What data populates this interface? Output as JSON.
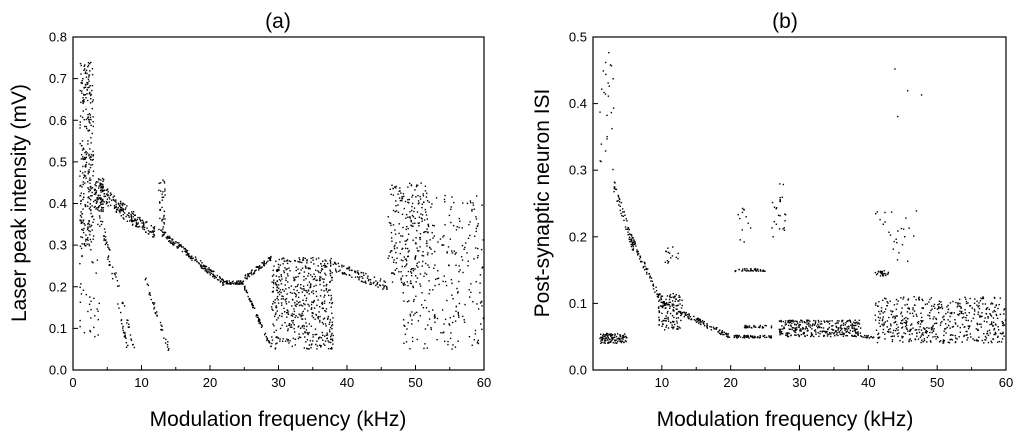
{
  "chart_data": [
    {
      "type": "scatter",
      "title": "(a)",
      "xlabel": "Modulation frequency (kHz)",
      "ylabel": "Laser peak intensity (mV)",
      "xlim": [
        0,
        60
      ],
      "ylim": [
        0.0,
        0.8
      ],
      "xticks": [
        "0",
        "10",
        "20",
        "30",
        "40",
        "50",
        "60"
      ],
      "yticks": [
        "0.0",
        "0.1",
        "0.2",
        "0.3",
        "0.4",
        "0.5",
        "0.6",
        "0.7",
        "0.8"
      ],
      "grid": false,
      "legend": "none",
      "color": "#000000",
      "series": [
        {
          "role": "peak-intensity-bifurcation",
          "segments": [
            {
              "x_range": [
                1.0,
                3.0
              ],
              "y_range": [
                0.3,
                0.74
              ],
              "shape": "dense-cloud",
              "n": 260
            },
            {
              "x_range": [
                3.0,
                4.5
              ],
              "y_range": [
                0.38,
                0.46
              ],
              "shape": "dense-cloud",
              "n": 80
            },
            {
              "x_range": [
                1.0,
                4.0
              ],
              "y_range": [
                0.08,
                0.45
              ],
              "shape": "scatter",
              "n": 60
            },
            {
              "x_from": [
                4,
                0.43
              ],
              "x_to": [
                9,
                0.36
              ],
              "shape": "curve",
              "n": 120,
              "spread": 0.02
            },
            {
              "x_from": [
                9,
                0.36
              ],
              "x_to": [
                12,
                0.33
              ],
              "shape": "curve",
              "n": 60,
              "spread": 0.015
            },
            {
              "x_range": [
                12.5,
                13.5
              ],
              "y_range": [
                0.33,
                0.46
              ],
              "shape": "spike",
              "n": 40
            },
            {
              "x_from": [
                13,
                0.33
              ],
              "x_to": [
                22,
                0.21
              ],
              "shape": "curve",
              "n": 150,
              "spread": 0.008
            },
            {
              "x_from": [
                22,
                0.21
              ],
              "x_to": [
                25,
                0.21
              ],
              "shape": "curve",
              "n": 50,
              "spread": 0.004
            },
            {
              "x_from": [
                25,
                0.22
              ],
              "x_to": [
                29,
                0.27
              ],
              "shape": "curve",
              "n": 60,
              "spread": 0.006
            },
            {
              "x_from": [
                25,
                0.2
              ],
              "x_to": [
                29,
                0.05
              ],
              "shape": "curve",
              "n": 60,
              "spread": 0.006
            },
            {
              "x_range": [
                29,
                38
              ],
              "y_range": [
                0.05,
                0.27
              ],
              "shape": "dense-cloud",
              "n": 520
            },
            {
              "x_from": [
                38,
                0.25
              ],
              "x_to": [
                46,
                0.2
              ],
              "shape": "curve",
              "n": 90,
              "spread": 0.012
            },
            {
              "x_range": [
                46,
                52
              ],
              "y_range": [
                0.2,
                0.45
              ],
              "shape": "dense-cloud",
              "n": 180
            },
            {
              "x_range": [
                48,
                60
              ],
              "y_range": [
                0.05,
                0.42
              ],
              "shape": "dense-cloud",
              "n": 300
            },
            {
              "x_from": [
                3.5,
                0.4
              ],
              "x_to": [
                9,
                0.05
              ],
              "shape": "curve",
              "n": 45,
              "spread": 0.01
            },
            {
              "x_from": [
                4.5,
                0.32
              ],
              "x_to": [
                8,
                0.05
              ],
              "shape": "curve",
              "n": 35,
              "spread": 0.01
            },
            {
              "x_from": [
                10.5,
                0.22
              ],
              "x_to": [
                14,
                0.05
              ],
              "shape": "curve",
              "n": 35,
              "spread": 0.01
            }
          ]
        }
      ]
    },
    {
      "type": "scatter",
      "title": "(b)",
      "xlabel": "Modulation frequency (kHz)",
      "ylabel": "Post-synaptic neuron ISI",
      "xlim": [
        0,
        60
      ],
      "ylim": [
        0.0,
        0.5
      ],
      "xticks": [
        "10",
        "20",
        "30",
        "40",
        "50",
        "60"
      ],
      "yticks": [
        "0.0",
        "0.1",
        "0.2",
        "0.3",
        "0.4",
        "0.5"
      ],
      "grid": false,
      "legend": "none",
      "color": "#000000",
      "series": [
        {
          "role": "isi-bifurcation",
          "segments": [
            {
              "x_range": [
                1,
                5
              ],
              "y_range": [
                0.04,
                0.055
              ],
              "shape": "band",
              "n": 110
            },
            {
              "x_range": [
                1,
                3
              ],
              "y_range": [
                0.3,
                0.49
              ],
              "shape": "scatter",
              "n": 25
            },
            {
              "x_from": [
                3,
                0.28
              ],
              "x_to": [
                6,
                0.18
              ],
              "shape": "curve",
              "n": 60,
              "spread": 0.01
            },
            {
              "x_from": [
                5.5,
                0.2
              ],
              "x_to": [
                10,
                0.1
              ],
              "shape": "curve",
              "n": 70,
              "spread": 0.006
            },
            {
              "x_from": [
                10,
                0.1
              ],
              "x_to": [
                20,
                0.05
              ],
              "shape": "curve",
              "n": 110,
              "spread": 0.004
            },
            {
              "x_range": [
                9.5,
                13
              ],
              "y_range": [
                0.06,
                0.115
              ],
              "shape": "dense-cloud",
              "n": 120
            },
            {
              "x_range": [
                10.5,
                12.5
              ],
              "y_range": [
                0.16,
                0.185
              ],
              "shape": "scatter",
              "n": 15
            },
            {
              "x_from": [
                20.5,
                0.15
              ],
              "x_to": [
                25,
                0.15
              ],
              "shape": "curve",
              "n": 40,
              "spread": 0.002
            },
            {
              "x_from": [
                20.5,
                0.05
              ],
              "x_to": [
                26,
                0.05
              ],
              "shape": "curve",
              "n": 60,
              "spread": 0.002
            },
            {
              "x_from": [
                22,
                0.065
              ],
              "x_to": [
                26,
                0.065
              ],
              "shape": "curve",
              "n": 30,
              "spread": 0.002
            },
            {
              "x_range": [
                21,
                23
              ],
              "y_range": [
                0.19,
                0.245
              ],
              "shape": "scatter",
              "n": 12
            },
            {
              "x_range": [
                26,
                28
              ],
              "y_range": [
                0.19,
                0.28
              ],
              "shape": "scatter",
              "n": 25
            },
            {
              "x_range": [
                27,
                39
              ],
              "y_range": [
                0.05,
                0.075
              ],
              "shape": "dense-cloud",
              "n": 320
            },
            {
              "x_from": [
                39,
                0.05
              ],
              "x_to": [
                41,
                0.05
              ],
              "shape": "curve",
              "n": 15,
              "spread": 0.002
            },
            {
              "x_range": [
                41,
                60
              ],
              "y_range": [
                0.04,
                0.11
              ],
              "shape": "dense-cloud",
              "n": 520
            },
            {
              "x_range": [
                41,
                43
              ],
              "y_range": [
                0.14,
                0.15
              ],
              "shape": "band",
              "n": 25
            },
            {
              "x_range": [
                41,
                47
              ],
              "y_range": [
                0.16,
                0.24
              ],
              "shape": "scatter",
              "n": 25
            },
            {
              "x_range": [
                42,
                48
              ],
              "y_range": [
                0.32,
                0.46
              ],
              "shape": "scatter",
              "n": 4
            }
          ]
        }
      ]
    }
  ]
}
